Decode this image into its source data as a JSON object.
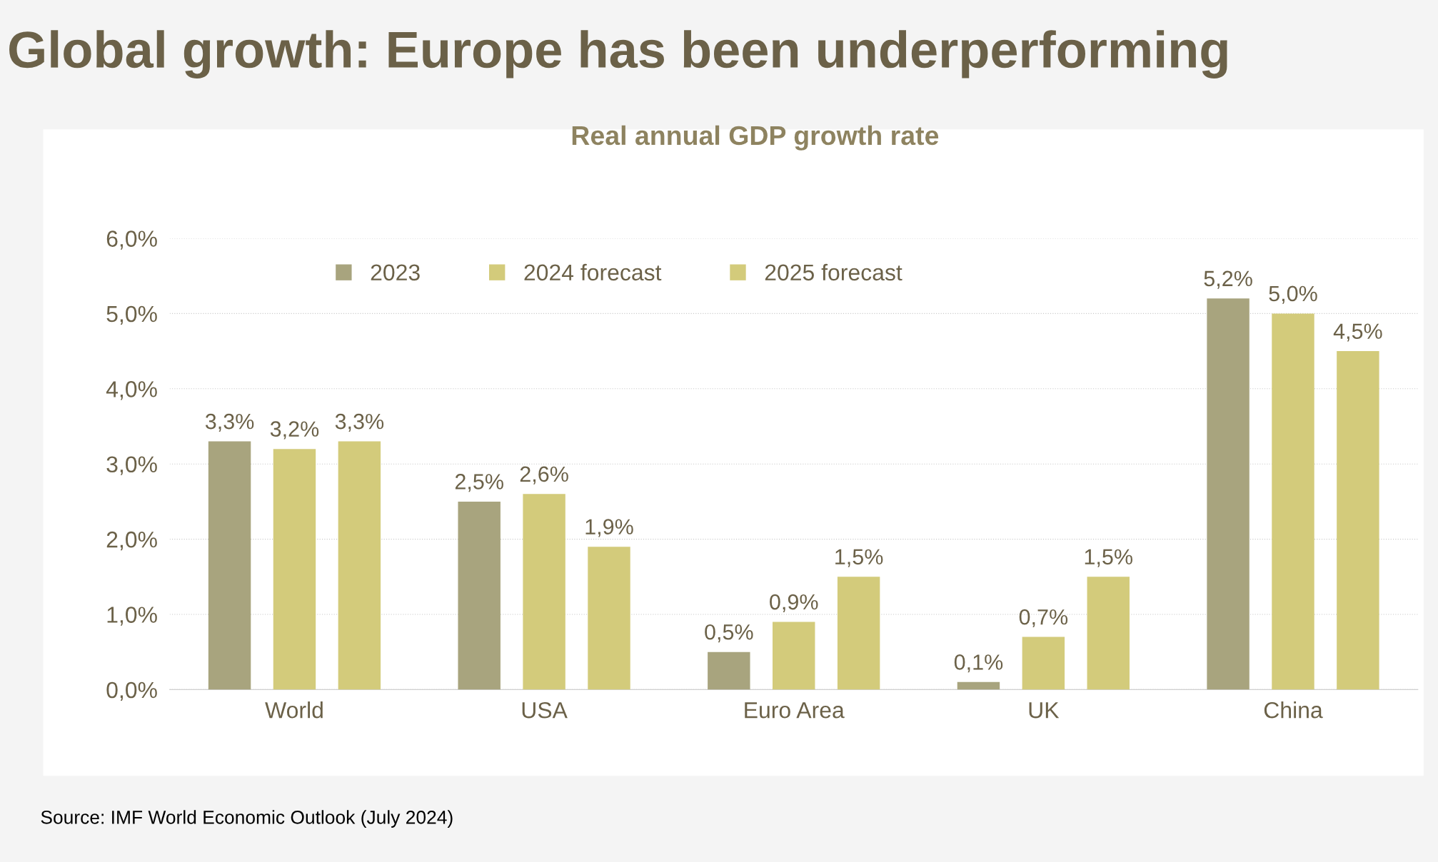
{
  "chart_data": {
    "type": "bar",
    "title": "Global growth: Europe has been underperforming",
    "subtitle": "Real annual GDP growth rate",
    "categories": [
      "World",
      "USA",
      "Euro Area",
      "UK",
      "China"
    ],
    "series": [
      {
        "name": "2023",
        "color": "#a8a47e",
        "values": [
          3.3,
          2.5,
          0.5,
          0.1,
          5.2
        ],
        "value_labels": [
          "3,3%",
          "2,5%",
          "0,5%",
          "0,1%",
          "5,2%"
        ]
      },
      {
        "name": "2024 forecast",
        "color": "#d3cb7b",
        "values": [
          3.2,
          2.6,
          0.9,
          0.7,
          5.0
        ],
        "value_labels": [
          "3,2%",
          "2,6%",
          "0,9%",
          "0,7%",
          "5,0%"
        ]
      },
      {
        "name": "2025 forecast",
        "color": "#d3cb7b",
        "values": [
          3.3,
          1.9,
          1.5,
          1.5,
          4.5
        ],
        "value_labels": [
          "3,3%",
          "1,9%",
          "1,5%",
          "1,5%",
          "4,5%"
        ]
      }
    ],
    "ylim": [
      0,
      6
    ],
    "yticks": [
      {
        "value": 0,
        "label": "0,0%"
      },
      {
        "value": 1,
        "label": "1,0%"
      },
      {
        "value": 2,
        "label": "2,0%"
      },
      {
        "value": 3,
        "label": "3,0%"
      },
      {
        "value": 4,
        "label": "4,0%"
      },
      {
        "value": 5,
        "label": "5,0%"
      },
      {
        "value": 6,
        "label": "6,0%"
      }
    ],
    "grid": "y",
    "legend": "top",
    "annotations": [
      "Source: IMF World Economic Outlook (July 2024)"
    ]
  }
}
